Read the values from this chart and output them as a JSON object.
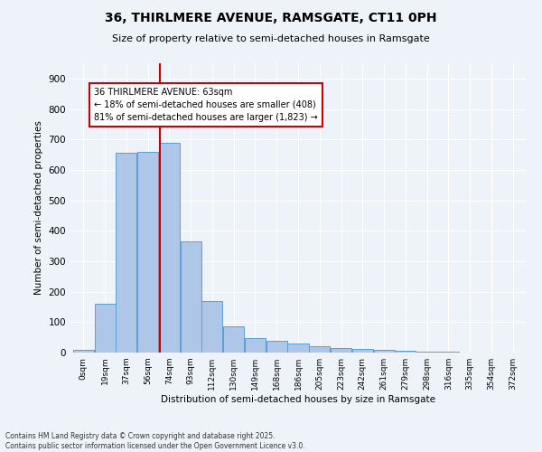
{
  "title": "36, THIRLMERE AVENUE, RAMSGATE, CT11 0PH",
  "subtitle": "Size of property relative to semi-detached houses in Ramsgate",
  "xlabel": "Distribution of semi-detached houses by size in Ramsgate",
  "ylabel": "Number of semi-detached properties",
  "bin_labels": [
    "0sqm",
    "19sqm",
    "37sqm",
    "56sqm",
    "74sqm",
    "93sqm",
    "112sqm",
    "130sqm",
    "149sqm",
    "168sqm",
    "186sqm",
    "205sqm",
    "223sqm",
    "242sqm",
    "261sqm",
    "279sqm",
    "298sqm",
    "316sqm",
    "335sqm",
    "354sqm",
    "372sqm"
  ],
  "bar_values": [
    8,
    160,
    655,
    660,
    690,
    365,
    170,
    87,
    48,
    38,
    30,
    20,
    14,
    11,
    9,
    5,
    3,
    2,
    1,
    0,
    0
  ],
  "bar_color": "#aec6e8",
  "bar_edge_color": "#5a9fd4",
  "annotation_title": "36 THIRLMERE AVENUE: 63sqm",
  "annotation_line1": "← 18% of semi-detached houses are smaller (408)",
  "annotation_line2": "81% of semi-detached houses are larger (1,823) →",
  "annotation_box_color": "#ffffff",
  "annotation_box_edge": "#cc0000",
  "vline_color": "#cc0000",
  "background_color": "#eef2f9",
  "grid_color": "#ffffff",
  "footer_line1": "Contains HM Land Registry data © Crown copyright and database right 2025.",
  "footer_line2": "Contains public sector information licensed under the Open Government Licence v3.0.",
  "ylim": [
    0,
    950
  ],
  "yticks": [
    0,
    100,
    200,
    300,
    400,
    500,
    600,
    700,
    800,
    900
  ],
  "vline_bin": 3.55
}
